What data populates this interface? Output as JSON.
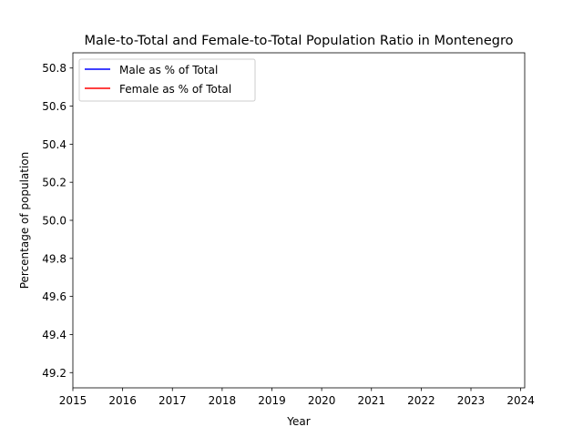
{
  "chart_data": {
    "type": "line",
    "title": "Male-to-Total and Female-to-Total Population Ratio in Montenegro",
    "xlabel": "Year",
    "ylabel": "Percentage of population",
    "xlim": [
      2015,
      2024.08
    ],
    "ylim": [
      49.12,
      50.88
    ],
    "xticks": [
      "2015",
      "2016",
      "2017",
      "2018",
      "2019",
      "2020",
      "2021",
      "2022",
      "2023",
      "2024"
    ],
    "yticks": [
      "49.2",
      "49.4",
      "49.6",
      "49.8",
      "50.0",
      "50.2",
      "50.4",
      "50.6",
      "50.8"
    ],
    "grid": false,
    "legend_position": "top-left",
    "series": [
      {
        "name": "Male as % of Total",
        "color": "#0000ff",
        "x": [],
        "y": []
      },
      {
        "name": "Female as % of Total",
        "color": "#ff0000",
        "x": [],
        "y": []
      }
    ]
  }
}
